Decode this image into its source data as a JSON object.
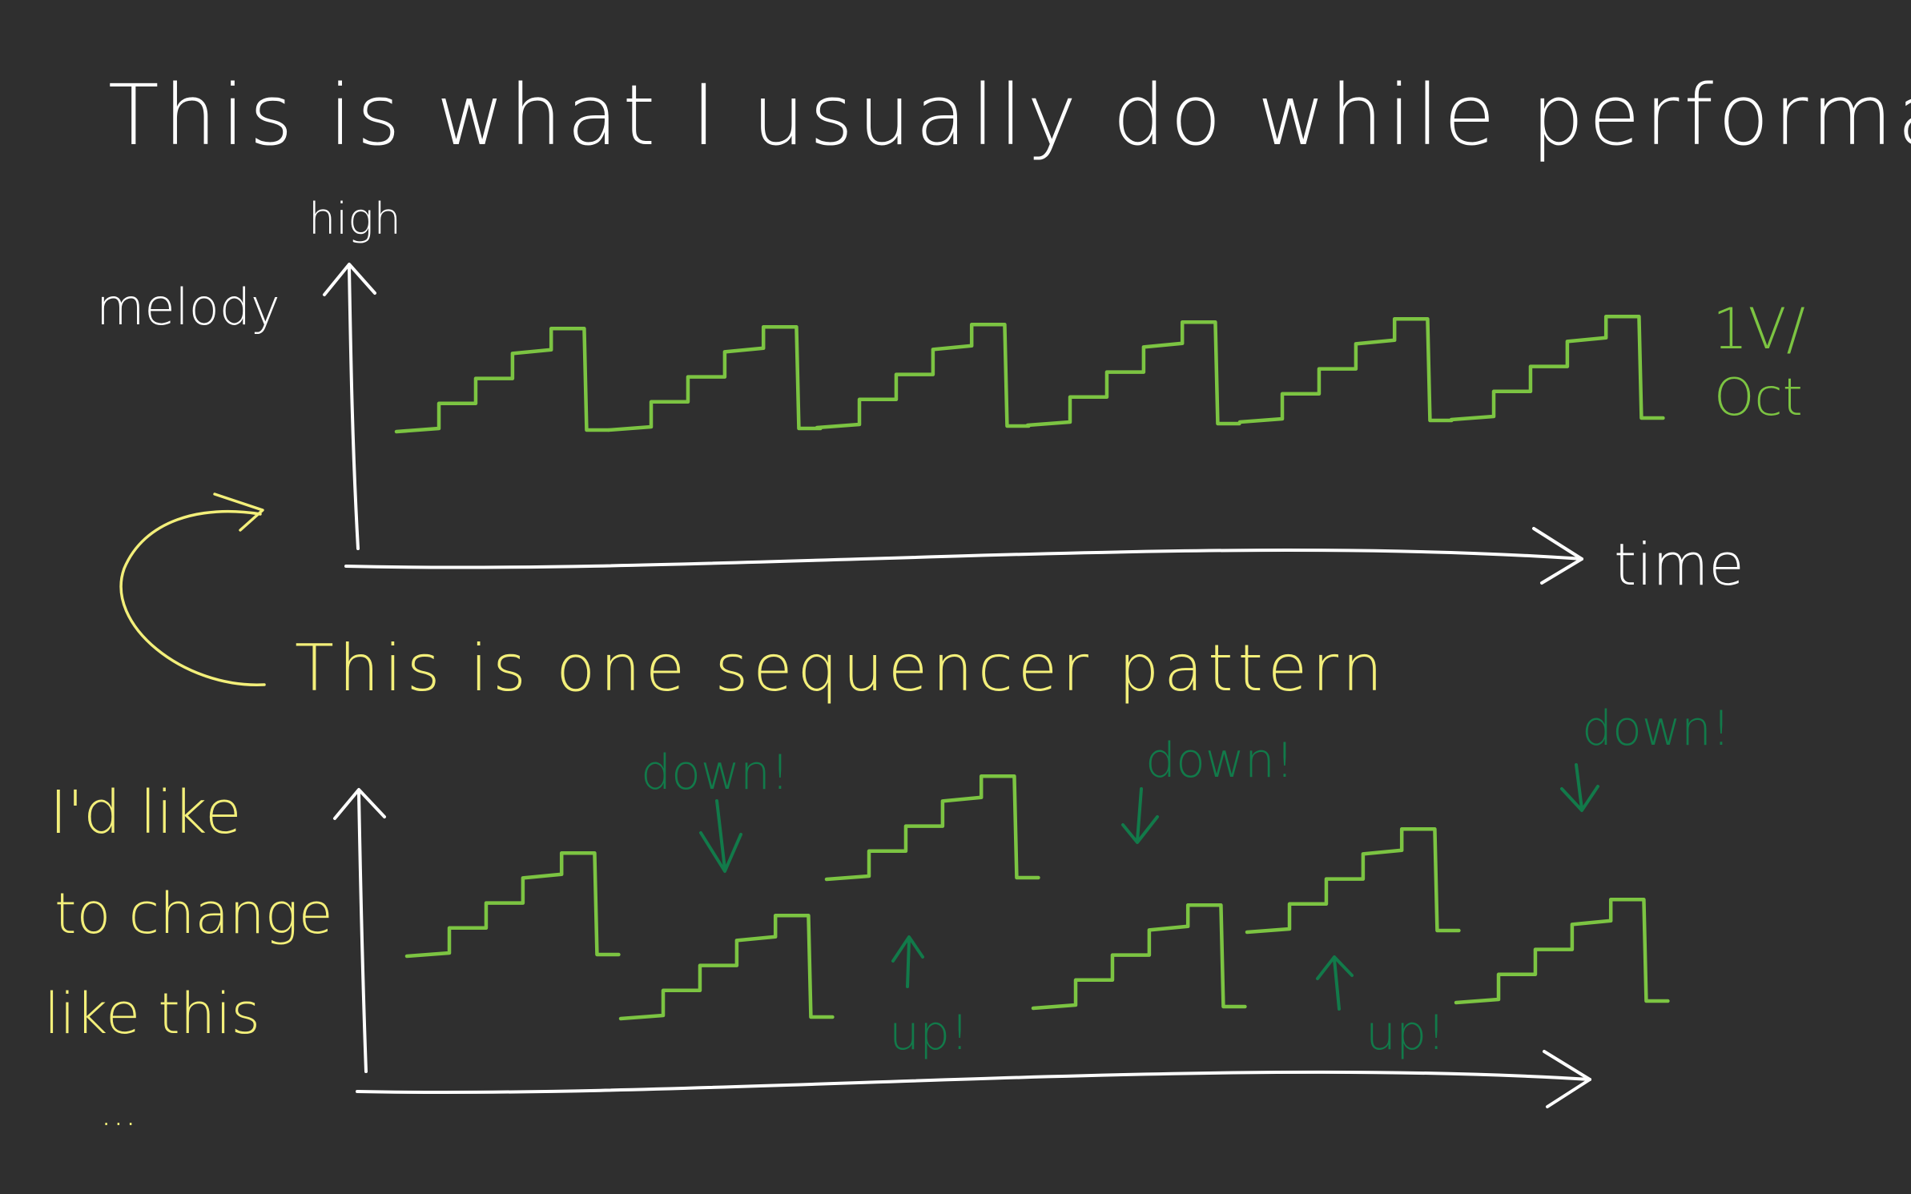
{
  "title": "This is what I usually do while performance",
  "top_diagram": {
    "y_axis_top": "high",
    "y_axis_label": "melody",
    "x_axis_label": "time",
    "signal_label_line1": "1V/",
    "signal_label_line2": "Oct"
  },
  "pattern_note": "This is one sequencer pattern",
  "bottom_diagram": {
    "note_line1": "I'd like",
    "note_line2": "to change",
    "note_line3": "like this",
    "note_line4": "...",
    "annotations": [
      {
        "label": "down!",
        "direction": "down"
      },
      {
        "label": "up!",
        "direction": "up"
      },
      {
        "label": "down!",
        "direction": "down"
      },
      {
        "label": "up!",
        "direction": "up"
      },
      {
        "label": "down!",
        "direction": "down"
      }
    ]
  },
  "colors": {
    "background": "#2f2f2f",
    "ink_white": "#ffffff",
    "ink_yellow": "#f3ef7a",
    "ink_light_green": "#7cc442",
    "ink_dark_green": "#127a4a"
  }
}
